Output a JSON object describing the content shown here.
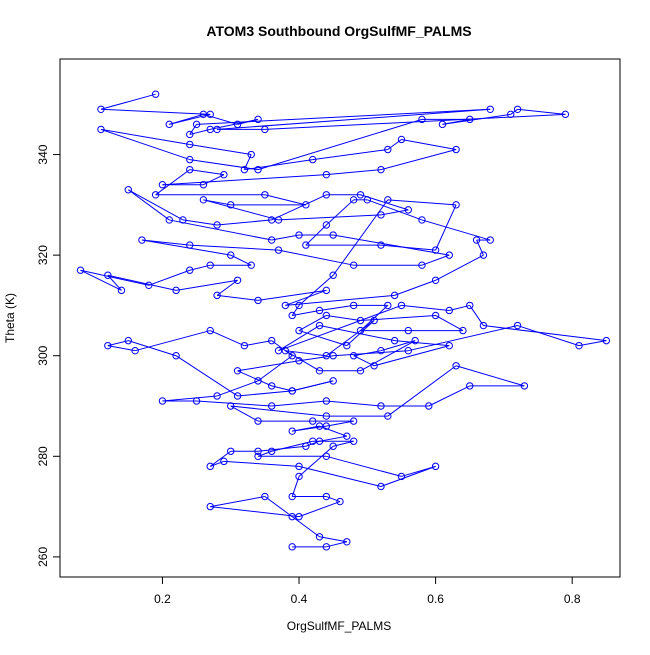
{
  "chart_data": {
    "type": "scatter",
    "title": "ATOM3 Southbound OrgSulfMF_PALMS",
    "xlabel": "OrgSulfMF_PALMS",
    "ylabel": "Theta (K)",
    "xlim": [
      0.05,
      0.87
    ],
    "ylim": [
      256,
      359
    ],
    "xticks": [
      0.2,
      0.4,
      0.6,
      0.8
    ],
    "xtick_labels": [
      "0.2",
      "0.4",
      "0.6",
      "0.8"
    ],
    "yticks": [
      260,
      280,
      300,
      320,
      340
    ],
    "ytick_labels": [
      "260",
      "280",
      "300",
      "320",
      "340"
    ],
    "grid": false,
    "connect_points": true,
    "marker": "open-circle",
    "series_color": "#0000ff",
    "series": [
      {
        "x": [
          0.19,
          0.11,
          0.27,
          0.21,
          0.26,
          0.31,
          0.34,
          0.27,
          0.24,
          0.25,
          0.68,
          0.28,
          0.35,
          0.79,
          0.72,
          0.71,
          0.61,
          0.65,
          0.58,
          0.34,
          0.24,
          0.11,
          0.24,
          0.33,
          0.32,
          0.42,
          0.53,
          0.55,
          0.63,
          0.52,
          0.44,
          0.2,
          0.26,
          0.29,
          0.24,
          0.19,
          0.35,
          0.41,
          0.3,
          0.26,
          0.37,
          0.52,
          0.56,
          0.49,
          0.44,
          0.36,
          0.28,
          0.23,
          0.15,
          0.21,
          0.36,
          0.4,
          0.45,
          0.62,
          0.58,
          0.48,
          0.37,
          0.24,
          0.17,
          0.3,
          0.33,
          0.27,
          0.24,
          0.18,
          0.08,
          0.14,
          0.12,
          0.22,
          0.31,
          0.28,
          0.34,
          0.44,
          0.38,
          0.54,
          0.6,
          0.67,
          0.66,
          0.68,
          0.58,
          0.5,
          0.48,
          0.44,
          0.41,
          0.52,
          0.6,
          0.63,
          0.53,
          0.45,
          0.4,
          0.39,
          0.43,
          0.48,
          0.53,
          0.49,
          0.56,
          0.64,
          0.6,
          0.49,
          0.44,
          0.4,
          0.47,
          0.51,
          0.44,
          0.38,
          0.43,
          0.49,
          0.57,
          0.52,
          0.48,
          0.51,
          0.62,
          0.54,
          0.43,
          0.37,
          0.55,
          0.62,
          0.65,
          0.67,
          0.85,
          0.81,
          0.72,
          0.56,
          0.45,
          0.4,
          0.31,
          0.36,
          0.39,
          0.45,
          0.39,
          0.31,
          0.22,
          0.15,
          0.12,
          0.16,
          0.27,
          0.32,
          0.36,
          0.39,
          0.34,
          0.28,
          0.2,
          0.25,
          0.36,
          0.44,
          0.52,
          0.59,
          0.65,
          0.73,
          0.63,
          0.53,
          0.44,
          0.3,
          0.34,
          0.42,
          0.48,
          0.44,
          0.39,
          0.43,
          0.47,
          0.43,
          0.41,
          0.34,
          0.3,
          0.27,
          0.29,
          0.4,
          0.52,
          0.6,
          0.55,
          0.44,
          0.34,
          0.36,
          0.42,
          0.48,
          0.45,
          0.4,
          0.39,
          0.44,
          0.46,
          0.4,
          0.27,
          0.35,
          0.39,
          0.43,
          0.47,
          0.44,
          0.39
        ],
        "y": [
          352,
          349,
          348,
          346,
          348,
          346,
          347,
          345,
          344,
          346,
          349,
          345,
          345,
          348,
          349,
          348,
          346,
          347,
          347,
          337,
          339,
          345,
          342,
          340,
          337,
          339,
          341,
          343,
          341,
          337,
          336,
          334,
          334,
          336,
          337,
          332,
          332,
          330,
          330,
          331,
          327,
          328,
          329,
          332,
          332,
          327,
          326,
          327,
          333,
          327,
          323,
          324,
          324,
          320,
          318,
          318,
          321,
          322,
          323,
          320,
          318,
          318,
          317,
          314,
          317,
          313,
          316,
          313,
          315,
          312,
          311,
          313,
          310,
          312,
          315,
          320,
          323,
          323,
          327,
          331,
          331,
          326,
          322,
          322,
          321,
          330,
          331,
          316,
          310,
          308,
          309,
          310,
          310,
          305,
          305,
          305,
          308,
          307,
          308,
          305,
          302,
          307,
          300,
          301,
          297,
          297,
          303,
          301,
          300,
          298,
          302,
          303,
          306,
          301,
          310,
          309,
          310,
          306,
          303,
          302,
          306,
          301,
          300,
          299,
          297,
          294,
          293,
          295,
          293,
          292,
          300,
          303,
          302,
          301,
          305,
          302,
          303,
          300,
          295,
          292,
          291,
          291,
          290,
          291,
          290,
          290,
          294,
          294,
          298,
          288,
          288,
          290,
          287,
          287,
          287,
          286,
          285,
          286,
          284,
          283,
          282,
          281,
          281,
          278,
          279,
          278,
          274,
          278,
          276,
          280,
          280,
          281,
          283,
          283,
          282,
          276,
          272,
          272,
          271,
          268,
          270,
          272,
          268,
          264,
          263,
          262,
          262
        ]
      }
    ]
  }
}
